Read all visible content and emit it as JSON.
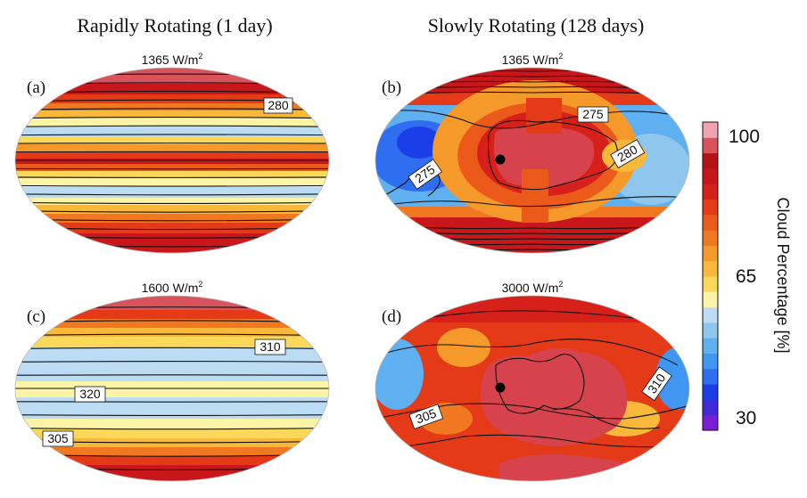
{
  "figure": {
    "column_titles": [
      "Rapidly Rotating (1 day)",
      "Slowly Rotating (128 days)"
    ]
  },
  "colors": {
    "cloud_scale": [
      "#7b1fd6",
      "#3f2bd8",
      "#1a3fe8",
      "#2f6ef0",
      "#3f97f2",
      "#5fb0f0",
      "#8ec6ee",
      "#bcdcf3",
      "#fbf3a6",
      "#fbd85a",
      "#f8b93a",
      "#f59a2a",
      "#f07820",
      "#eb5a1a",
      "#e53a17",
      "#d8201a",
      "#c8161a",
      "#b51215",
      "#d9535c",
      "#f3a3b0"
    ],
    "contour": "#111111",
    "land": "#d7434c"
  },
  "chart_data": [
    {
      "type": "contour-map",
      "panel": "(a)",
      "title": "1365 W/m",
      "title_sup": "2",
      "rotation": "rapidly rotating (1 day)",
      "cloud_pattern": "zonal bands",
      "contour_labels": [
        "280"
      ]
    },
    {
      "type": "contour-map",
      "panel": "(b)",
      "title": "1365 W/m",
      "title_sup": "2",
      "rotation": "slowly rotating (128 days)",
      "cloud_pattern": "substellar cloud deck",
      "contour_labels": [
        "275",
        "280",
        "275"
      ]
    },
    {
      "type": "contour-map",
      "panel": "(c)",
      "title": "1600 W/m",
      "title_sup": "2",
      "rotation": "rapidly rotating (1 day)",
      "cloud_pattern": "zonal bands",
      "contour_labels": [
        "310",
        "320",
        "305"
      ]
    },
    {
      "type": "contour-map",
      "panel": "(d)",
      "title": "3000 W/m",
      "title_sup": "2",
      "rotation": "slowly rotating (128 days)",
      "cloud_pattern": "substellar cloud deck",
      "contour_labels": [
        "310",
        "305"
      ]
    }
  ],
  "colorbar": {
    "label": "Cloud Percentage [%]",
    "ticks": [
      100,
      65,
      30
    ],
    "range": [
      30,
      100
    ]
  }
}
